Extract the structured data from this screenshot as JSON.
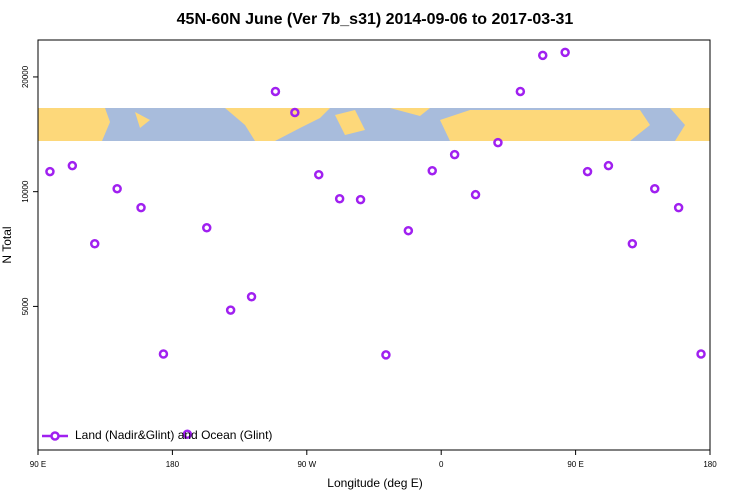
{
  "chart_data": {
    "type": "scatter",
    "title": "45N-60N June (Ver 7b_s31)   2014-09-06 to 2017-03-31",
    "x_label": "Longitude (deg E)",
    "y_label": "N Total",
    "xlim": [
      90,
      540
    ],
    "ylim": [
      2100,
      25000
    ],
    "ylog": true,
    "xticks": [
      {
        "value": 90,
        "label": "90 E"
      },
      {
        "value": 180,
        "label": "180"
      },
      {
        "value": 270,
        "label": "90 W"
      },
      {
        "value": 360,
        "label": "0"
      },
      {
        "value": 450,
        "label": "90 E"
      },
      {
        "value": 540,
        "label": "180"
      }
    ],
    "yticks": [
      5000,
      10000,
      20000
    ],
    "legend": "bottom-left",
    "series": [
      {
        "name": "Land (Nadir&Glint) and Ocean (Glint)",
        "color": "#a020f0",
        "x": [
          98,
          113,
          128,
          143,
          159,
          174,
          190,
          203,
          219,
          233,
          249,
          262,
          278,
          292,
          306,
          323,
          338,
          354,
          369,
          383,
          398,
          413,
          428,
          443,
          458,
          472,
          488,
          503,
          519,
          534
        ],
        "values": [
          11290,
          11700,
          7300,
          10180,
          9080,
          3750,
          2310,
          8040,
          4890,
          5300,
          18320,
          16130,
          11080,
          9580,
          9530,
          3730,
          7900,
          11350,
          12510,
          9820,
          13450,
          18320,
          22780,
          23200,
          11290,
          11700,
          7300,
          10180,
          9080,
          3750
        ]
      }
    ]
  }
}
